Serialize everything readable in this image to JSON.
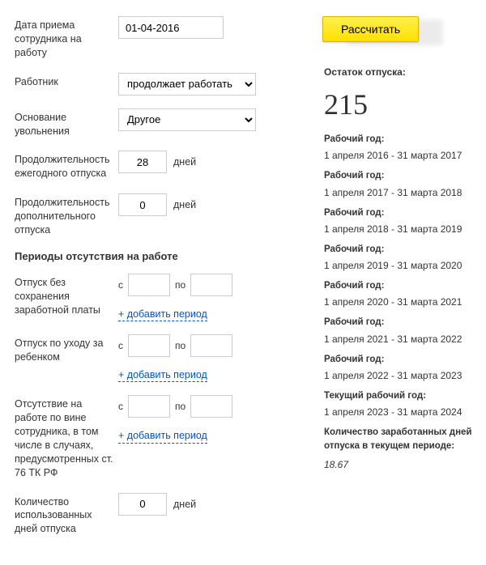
{
  "form": {
    "hire_date": {
      "label": "Дата приема сотрудника на работу",
      "value": "01-04-2016"
    },
    "employee": {
      "label": "Работник",
      "options": [
        "продолжает работать"
      ],
      "selected": "продолжает работать"
    },
    "dismissal_reason": {
      "label": "Основание увольнения",
      "options": [
        "Другое"
      ],
      "selected": "Другое"
    },
    "annual_leave": {
      "label": "Продолжительность ежегодного отпуска",
      "value": "28",
      "unit": "дней"
    },
    "additional_leave": {
      "label": "Продолжительность дополнительного отпуска",
      "value": "0",
      "unit": "дней"
    },
    "absence_section": "Периоды отсутствия на работе",
    "period_labels": {
      "from": "с",
      "to": "по",
      "add": "+ добавить период"
    },
    "absence1": {
      "label": "Отпуск без сохранения заработной платы"
    },
    "absence2": {
      "label": "Отпуск по уходу за ребенком"
    },
    "absence3": {
      "label": "Отсутствие на работе по вине сотрудника, в том числе в случаях, предусмотренных ст. 76 ТК РФ"
    },
    "used_leave": {
      "label": "Количество использованных дней отпуска",
      "value": "0",
      "unit": "дней"
    }
  },
  "calc_button": "Рассчитать",
  "results": {
    "remain_label": "Остаток отпуска:",
    "remain_value": "215",
    "year_label": "Рабочий год:",
    "years": [
      "1 апреля 2016 - 31 марта 2017",
      "1 апреля 2017 - 31 марта 2018",
      "1 апреля 2018 - 31 марта 2019",
      "1 апреля 2019 - 31 марта 2020",
      "1 апреля 2020 - 31 марта 2021",
      "1 апреля 2021 - 31 марта 2022",
      "1 апреля 2022 - 31 марта 2023"
    ],
    "current_year_label": "Текущий рабочий год:",
    "current_year": "1 апреля 2023 - 31 марта 2024",
    "earned_label": "Количество заработанных дней отпуска в текущем периоде:",
    "earned_value": "18.67"
  }
}
